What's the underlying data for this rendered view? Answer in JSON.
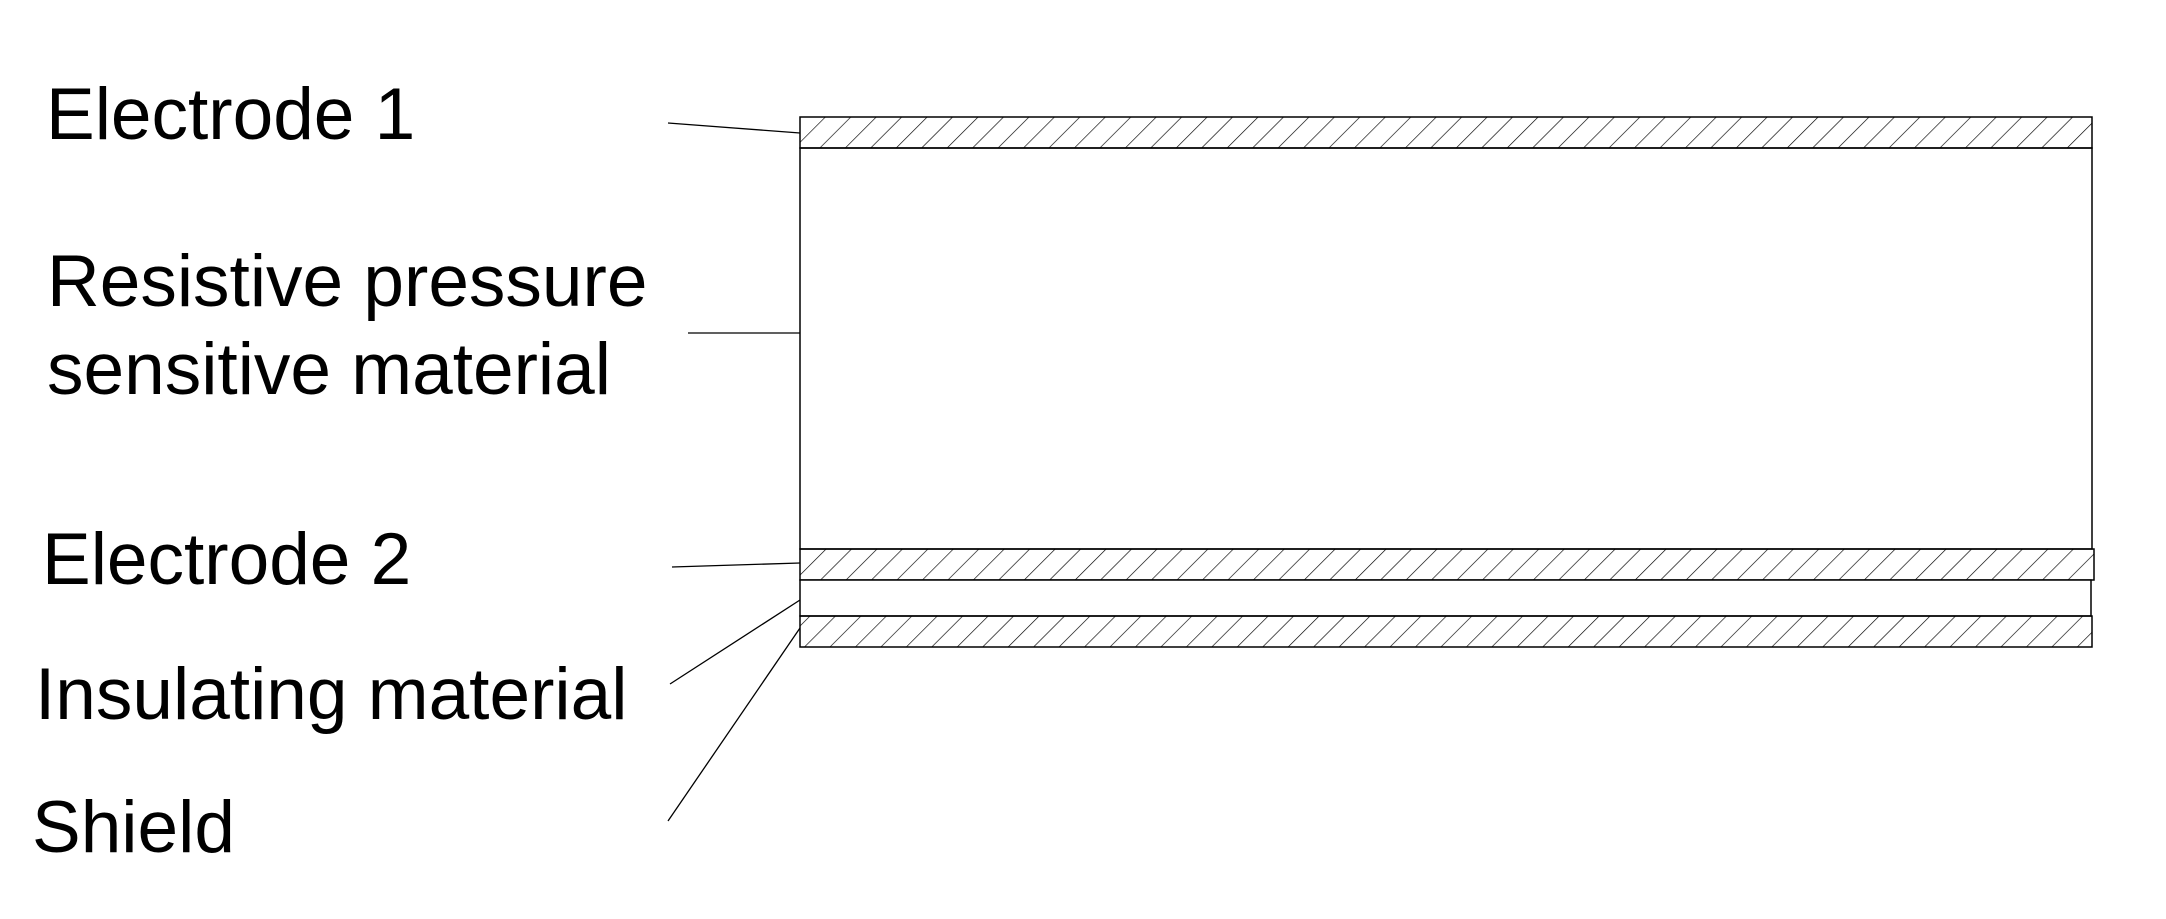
{
  "diagram": {
    "labels": {
      "electrode_1": "Electrode 1",
      "resistive_line1": "Resistive pressure",
      "resistive_line2": "sensitive material",
      "electrode_2": "Electrode 2",
      "insulating": "Insulating material",
      "shield": "Shield"
    },
    "layers": [
      {
        "name": "Electrode 1",
        "fill": "hatched"
      },
      {
        "name": "Resistive pressure sensitive material",
        "fill": "plain"
      },
      {
        "name": "Electrode 2",
        "fill": "hatched"
      },
      {
        "name": "Insulating material",
        "fill": "plain"
      },
      {
        "name": "Shield",
        "fill": "hatched"
      }
    ],
    "colors": {
      "stroke": "#000000",
      "background": "#ffffff"
    }
  }
}
